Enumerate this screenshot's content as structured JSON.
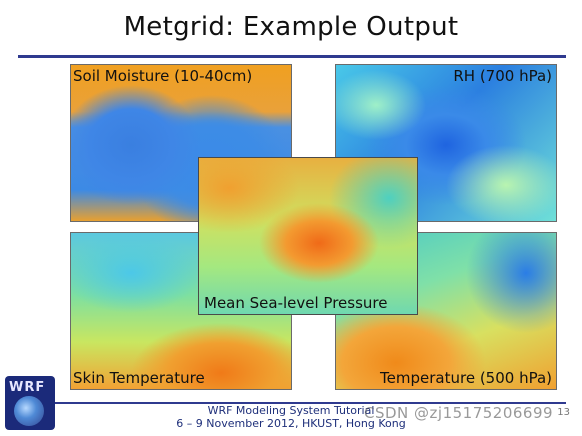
{
  "slide": {
    "title": "Metgrid: Example Output",
    "page_number": "13"
  },
  "panels": {
    "soil_moisture": "Soil Moisture (10-40cm)",
    "rh": "RH (700 hPa)",
    "mslp": "Mean Sea-level Pressure",
    "skin_temperature": "Skin Temperature",
    "temperature_500": "Temperature (500 hPa)"
  },
  "footer": {
    "logo_text": "WRF",
    "line1": "WRF Modeling System Tutorial",
    "line2": "6 – 9 November 2012, HKUST, Hong Kong"
  },
  "watermark": "CSDN @zj15175206699",
  "colors": {
    "rule": "#2f3a8f",
    "footer_text": "#1e2f7a"
  }
}
